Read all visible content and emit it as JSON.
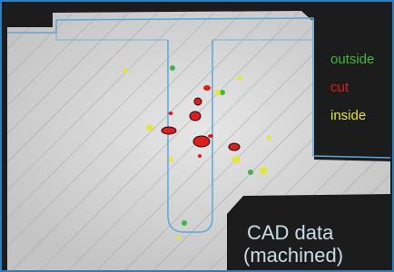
{
  "legend": {
    "items": [
      {
        "label": "outside",
        "color": "#3fb83f"
      },
      {
        "label": "cut",
        "color": "#e01c1c"
      },
      {
        "label": "inside",
        "color": "#e6e62a"
      }
    ]
  },
  "caption": {
    "lines": [
      "CAD data",
      "(machined)"
    ]
  }
}
